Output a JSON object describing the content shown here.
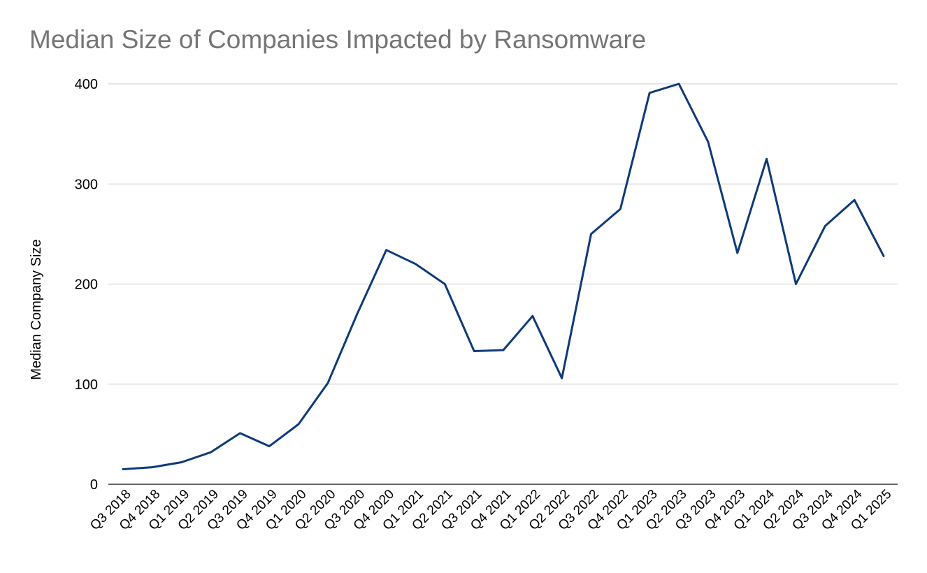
{
  "chart_data": {
    "type": "line",
    "title": "Median Size of Companies Impacted by Ransomware",
    "xlabel": "",
    "ylabel": "Median Company Size",
    "ylim": [
      0,
      400
    ],
    "yticks": [
      0,
      100,
      200,
      300,
      400
    ],
    "grid": true,
    "legend": "none",
    "categories": [
      "Q3 2018",
      "Q4 2018",
      "Q1 2019",
      "Q2 2019",
      "Q3 2019",
      "Q4 2019",
      "Q1 2020",
      "Q2 2020",
      "Q3 2020",
      "Q4 2020",
      "Q1 2021",
      "Q2 2021",
      "Q3 2021",
      "Q4 2021",
      "Q1 2022",
      "Q2 2022",
      "Q3 2022",
      "Q4 2022",
      "Q1 2023",
      "Q2 2023",
      "Q3 2023",
      "Q4 2023",
      "Q1 2024",
      "Q2 2024",
      "Q3 2024",
      "Q4 2024",
      "Q1 2025"
    ],
    "series": [
      {
        "values": [
          15,
          17,
          22,
          32,
          51,
          38,
          60,
          101,
          170,
          234,
          220,
          200,
          133,
          134,
          168,
          106,
          250,
          275,
          391,
          400,
          342,
          231,
          325,
          200,
          258,
          284,
          228
        ]
      }
    ],
    "colors": {
      "line": "#0e3a78",
      "grid": "#cccccc",
      "axis": "#333333",
      "title": "#757575"
    }
  }
}
